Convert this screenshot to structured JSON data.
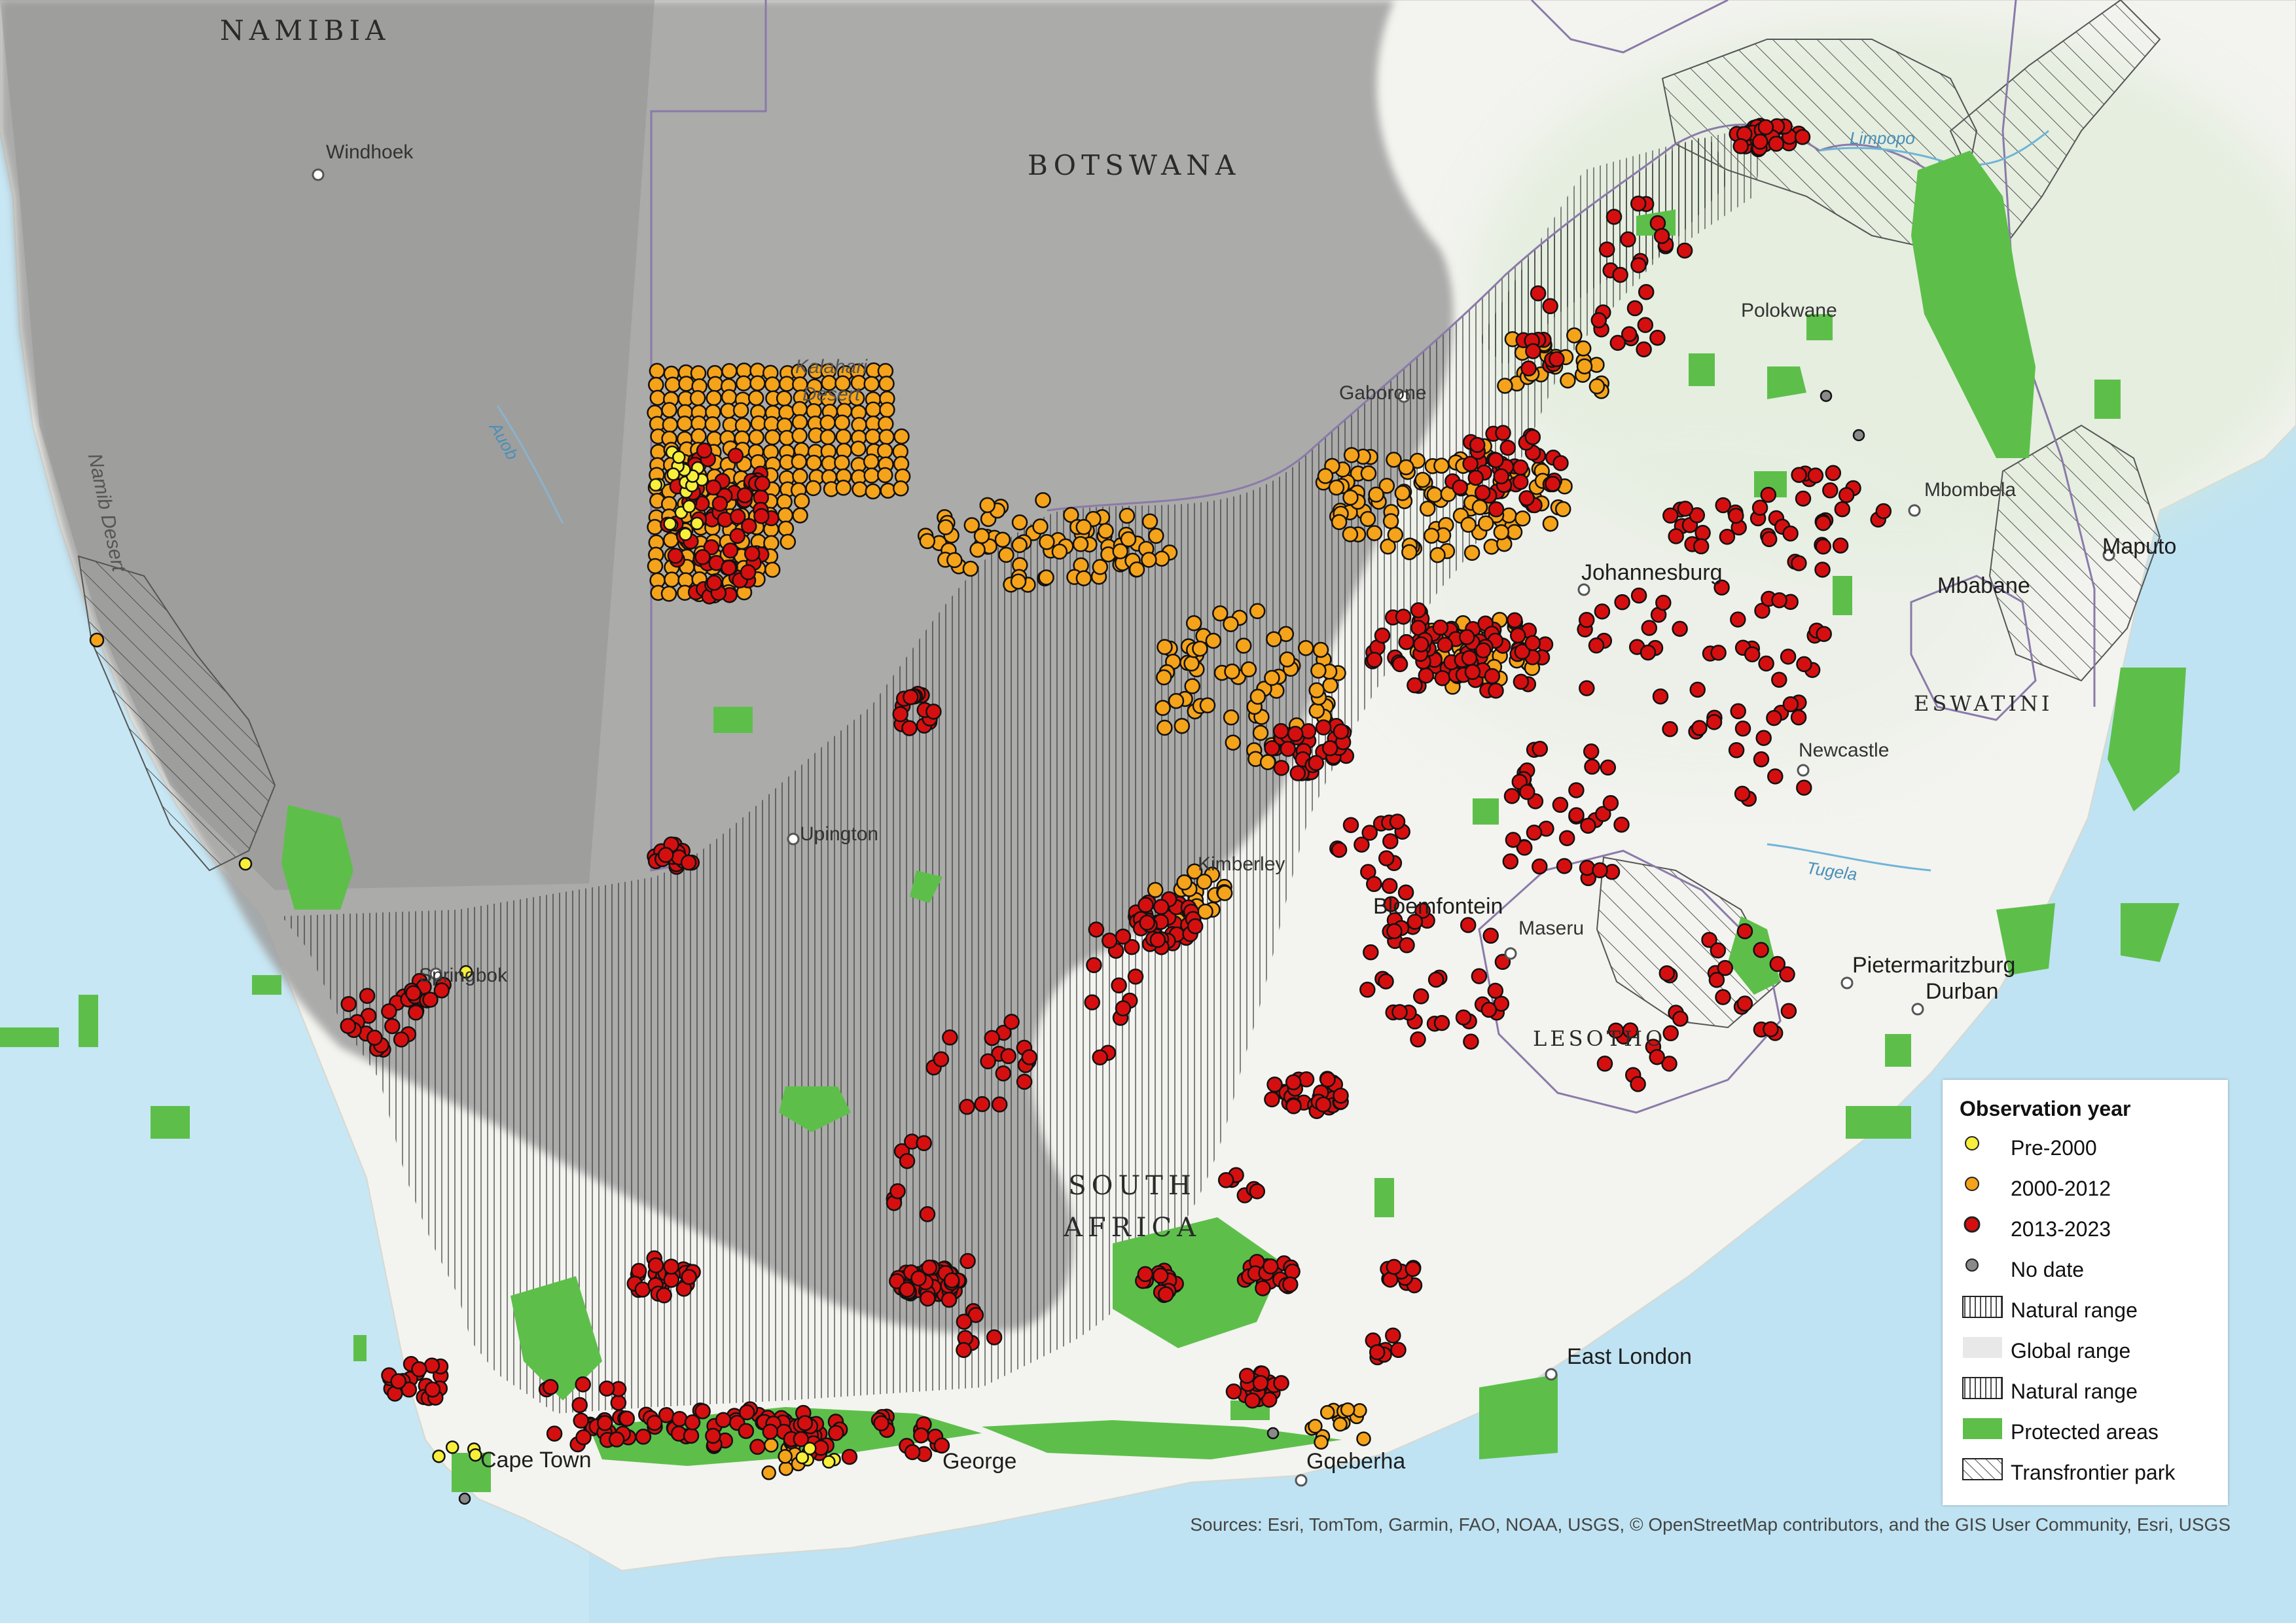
{
  "labels": {
    "countries": [
      "NAMIBIA",
      "BOTSWANA",
      "SOUTH AFRICA",
      "LESOTHO",
      "ESWATINI"
    ],
    "cities": [
      "Windhoek",
      "Gaborone",
      "Polokwane",
      "Mbombela",
      "Maputo",
      "Mbabane",
      "Johannesburg",
      "Newcastle",
      "Upington",
      "Kimberley",
      "Bloemfontein",
      "Maseru",
      "Pietermaritzburg",
      "Durban",
      "Springbok",
      "East London",
      "Cape Town",
      "George",
      "Gqeberha"
    ],
    "regions": [
      "Namib Desert",
      "Kalahari Desert"
    ],
    "water": [
      "Auob",
      "Limpopo",
      "Tugela"
    ]
  },
  "legend": {
    "title": "Observation year",
    "items": [
      {
        "label": "Pre-2000",
        "symbol": "point",
        "color": "#f7ef3a"
      },
      {
        "label": "2000-2012",
        "symbol": "point",
        "color": "#f5a31a"
      },
      {
        "label": "2013-2023",
        "symbol": "point",
        "color": "#d50f0f"
      },
      {
        "label": "No date",
        "symbol": "point",
        "color": "#8a8a8a"
      },
      {
        "label": "Natural range",
        "symbol": "vertical-hatch",
        "color": "#222222"
      },
      {
        "label": "Global range",
        "symbol": "grey-fill",
        "color": "#e8e8e8"
      },
      {
        "label": "Natural range",
        "symbol": "vertical-hatch",
        "color": "#222222"
      },
      {
        "label": "Protected areas",
        "symbol": "green-fill",
        "color": "#5dbf4a"
      },
      {
        "label": "Transfrontier park",
        "symbol": "diagonal-hatch",
        "color": "#222222"
      }
    ]
  },
  "attribution": "Sources: Esri, TomTom, Garmin, FAO, NOAA, USGS, © OpenStreetMap contributors, and the GIS User Community, Esri, USGS",
  "colors": {
    "ocean": "#bfe3f2",
    "land": "#f3f3ef",
    "global_range": "#a9a9a9",
    "protected": "#5dbf4a",
    "pre2000": "#f7ef3a",
    "y2000_2012": "#f5a31a",
    "y2013_2023": "#d50f0f",
    "no_date": "#8a8a8a"
  }
}
